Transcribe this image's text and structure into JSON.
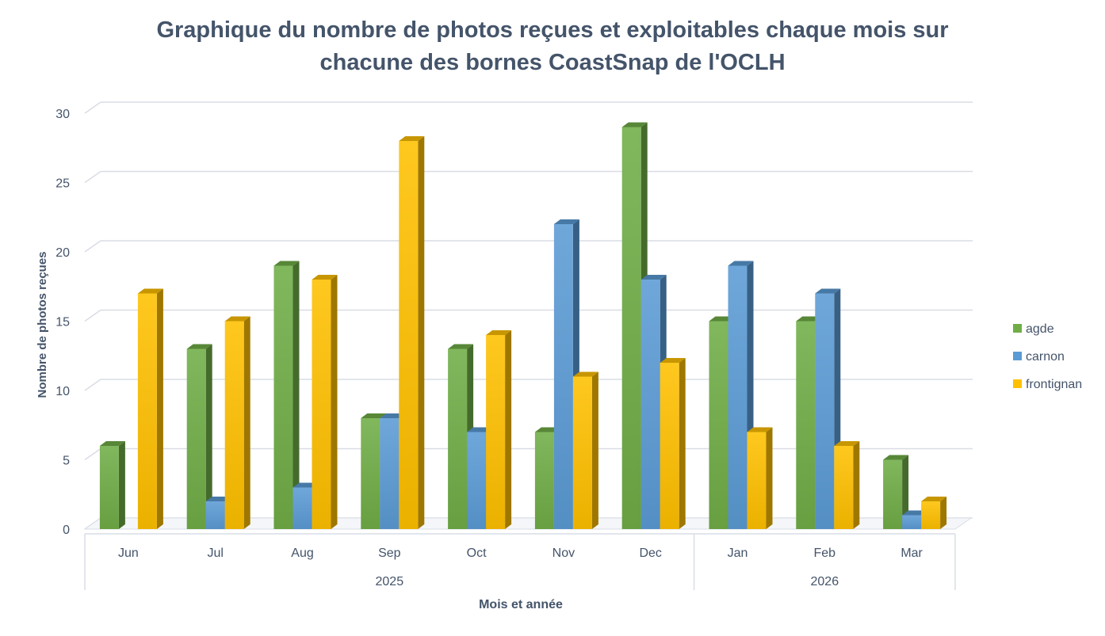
{
  "chart_data": {
    "type": "bar",
    "title_lines": [
      "Graphique du nombre de photos reçues et exploitables chaque mois sur",
      "chacune des bornes CoastSnap de l'OCLH"
    ],
    "ylabel": "Nombre de photos reçues",
    "xlabel": "Mois et année",
    "ylim": [
      0,
      30
    ],
    "yticks": [
      0,
      5,
      10,
      15,
      20,
      25,
      30
    ],
    "categories": [
      "Jun",
      "Jul",
      "Aug",
      "Sep",
      "Oct",
      "Nov",
      "Dec",
      "Jan",
      "Feb",
      "Mar"
    ],
    "groups": [
      {
        "label": "2025",
        "count": 7
      },
      {
        "label": "2026",
        "count": 3
      }
    ],
    "series": [
      {
        "name": "agde",
        "color": "#70ad47",
        "values": [
          6,
          13,
          19,
          8,
          13,
          7,
          29,
          15,
          15,
          5
        ]
      },
      {
        "name": "carnon",
        "color": "#5b9bd5",
        "values": [
          0,
          2,
          3,
          8,
          7,
          22,
          18,
          19,
          17,
          1
        ]
      },
      {
        "name": "frontignan",
        "color": "#ffc000",
        "values": [
          17,
          15,
          18,
          28,
          14,
          11,
          12,
          7,
          6,
          2
        ]
      }
    ],
    "grid": true,
    "legend_position": "right"
  }
}
